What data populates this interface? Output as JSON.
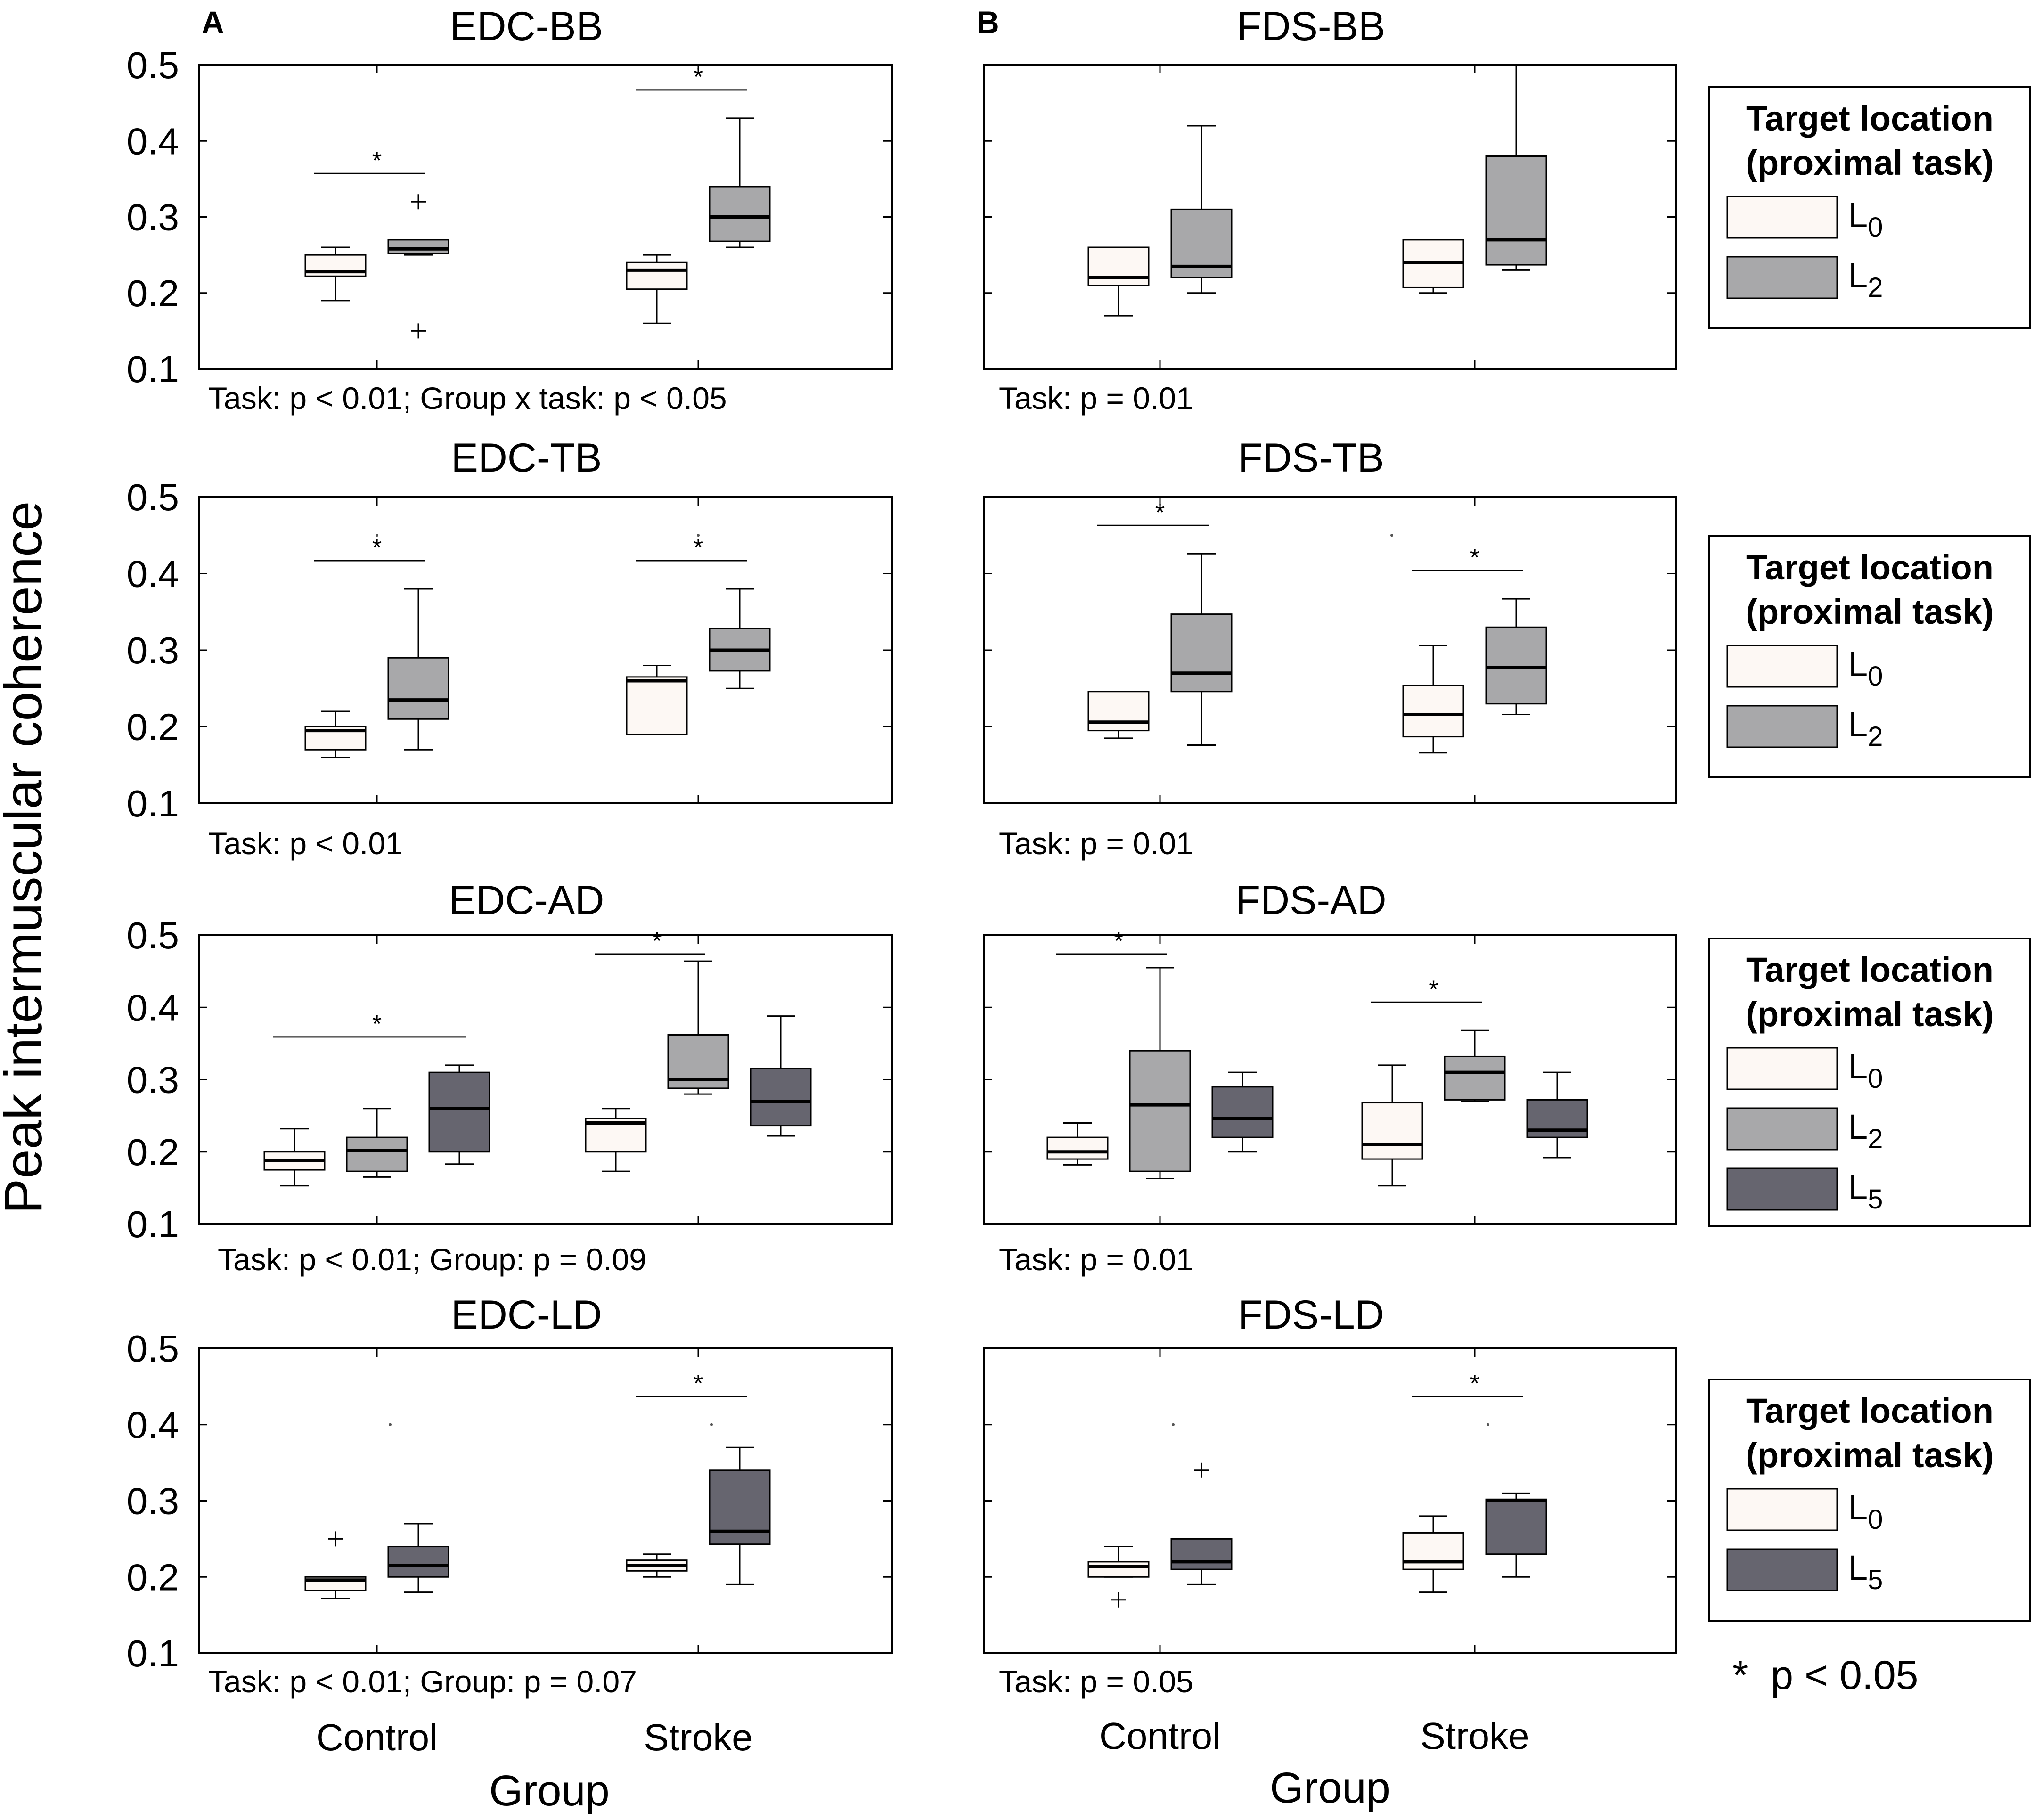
{
  "figure": {
    "y_axis_label": "Peak intermuscular coherence",
    "x_axis_label": "Group",
    "significance_note": "*  p < 0.05",
    "colors": {
      "L0": "#fdf8f4",
      "L2": "#a8a8aa",
      "L5": "#66656f",
      "frame": "#000000"
    }
  },
  "legends": [
    {
      "title_line1": "Target location",
      "title_line2": "(proximal task)",
      "entries": [
        {
          "level": "L0",
          "sub": "0"
        },
        {
          "level": "L2",
          "sub": "2"
        }
      ]
    },
    {
      "title_line1": "Target location",
      "title_line2": "(proximal task)",
      "entries": [
        {
          "level": "L0",
          "sub": "0"
        },
        {
          "level": "L2",
          "sub": "2"
        }
      ]
    },
    {
      "title_line1": "Target location",
      "title_line2": "(proximal task)",
      "entries": [
        {
          "level": "L0",
          "sub": "0"
        },
        {
          "level": "L2",
          "sub": "2"
        },
        {
          "level": "L5",
          "sub": "5"
        }
      ]
    },
    {
      "title_line1": "Target location",
      "title_line2": "(proximal task)",
      "entries": [
        {
          "level": "L0",
          "sub": "0"
        },
        {
          "level": "L5",
          "sub": "5"
        }
      ]
    }
  ],
  "chart_data": [
    {
      "type": "box",
      "panel": "A",
      "title": "EDC-BB",
      "stats": "Task: p < 0.01; Group x task: p < 0.05",
      "ylabel": "Peak intermuscular coherence",
      "xlabel": "Group",
      "ylim": [
        0.1,
        0.5
      ],
      "yticks": [
        "0.1",
        "0.2",
        "0.3",
        "0.4",
        "0.5"
      ],
      "categories": [
        "Control",
        "Stroke"
      ],
      "series": [
        {
          "name": "L0",
          "group": "Control",
          "whisker_low": 0.19,
          "q1": 0.222,
          "median": 0.228,
          "q3": 0.25,
          "whisker_high": 0.26,
          "outliers": []
        },
        {
          "name": "L2",
          "group": "Control",
          "whisker_low": 0.25,
          "q1": 0.252,
          "median": 0.258,
          "q3": 0.27,
          "whisker_high": 0.27,
          "outliers": [
            0.32,
            0.15
          ]
        },
        {
          "name": "L0",
          "group": "Stroke",
          "whisker_low": 0.16,
          "q1": 0.205,
          "median": 0.23,
          "q3": 0.24,
          "whisker_high": 0.25,
          "outliers": []
        },
        {
          "name": "L2",
          "group": "Stroke",
          "whisker_low": 0.26,
          "q1": 0.268,
          "median": 0.3,
          "q3": 0.34,
          "whisker_high": 0.43,
          "outliers": []
        }
      ],
      "significance": [
        {
          "from": "Control L0",
          "to": "Control L2",
          "label": "*"
        },
        {
          "from": "Stroke L0",
          "to": "Stroke L2",
          "label": "*"
        }
      ]
    },
    {
      "type": "box",
      "panel": "B",
      "title": "FDS-BB",
      "stats": "Task: p = 0.01",
      "ylabel": "Peak intermuscular coherence",
      "xlabel": "Group",
      "ylim": [
        0.1,
        0.5
      ],
      "yticks": [
        "0.1",
        "0.2",
        "0.3",
        "0.4",
        "0.5"
      ],
      "categories": [
        "Control",
        "Stroke"
      ],
      "series": [
        {
          "name": "L0",
          "group": "Control",
          "whisker_low": 0.17,
          "q1": 0.21,
          "median": 0.22,
          "q3": 0.26,
          "whisker_high": 0.26,
          "outliers": []
        },
        {
          "name": "L2",
          "group": "Control",
          "whisker_low": 0.2,
          "q1": 0.22,
          "median": 0.235,
          "q3": 0.31,
          "whisker_high": 0.42,
          "outliers": []
        },
        {
          "name": "L0",
          "group": "Stroke",
          "whisker_low": 0.2,
          "q1": 0.207,
          "median": 0.24,
          "q3": 0.27,
          "whisker_high": 0.27,
          "outliers": []
        },
        {
          "name": "L2",
          "group": "Stroke",
          "whisker_low": 0.23,
          "q1": 0.237,
          "median": 0.27,
          "q3": 0.38,
          "whisker_high": 0.5,
          "outliers": []
        }
      ],
      "significance": []
    },
    {
      "type": "box",
      "panel": "",
      "title": "EDC-TB",
      "stats": "Task: p < 0.01",
      "ylabel": "Peak intermuscular coherence",
      "xlabel": "Group",
      "ylim": [
        0.1,
        0.5
      ],
      "yticks": [
        "0.1",
        "0.2",
        "0.3",
        "0.4",
        "0.5"
      ],
      "categories": [
        "Control",
        "Stroke"
      ],
      "series": [
        {
          "name": "L0",
          "group": "Control",
          "whisker_low": 0.16,
          "q1": 0.17,
          "median": 0.195,
          "q3": 0.2,
          "whisker_high": 0.22,
          "outliers": []
        },
        {
          "name": "L2",
          "group": "Control",
          "whisker_low": 0.17,
          "q1": 0.21,
          "median": 0.235,
          "q3": 0.29,
          "whisker_high": 0.38,
          "outliers": [
            0.45
          ]
        },
        {
          "name": "L0",
          "group": "Stroke",
          "whisker_low": 0.19,
          "q1": 0.19,
          "median": 0.26,
          "q3": 0.265,
          "whisker_high": 0.28,
          "outliers": []
        },
        {
          "name": "L2",
          "group": "Stroke",
          "whisker_low": 0.25,
          "q1": 0.273,
          "median": 0.3,
          "q3": 0.328,
          "whisker_high": 0.38,
          "outliers": [
            0.45
          ]
        }
      ],
      "significance": [
        {
          "from": "Control L0",
          "to": "Control L2",
          "label": "*"
        },
        {
          "from": "Stroke L0",
          "to": "Stroke L2",
          "label": "*"
        }
      ]
    },
    {
      "type": "box",
      "panel": "",
      "title": "FDS-TB",
      "stats": "Task: p = 0.01",
      "ylabel": "Peak intermuscular coherence",
      "xlabel": "Group",
      "ylim": [
        0.1,
        0.5
      ],
      "yticks": [
        "0.1",
        "0.2",
        "0.3",
        "0.4",
        "0.5"
      ],
      "categories": [
        "Control",
        "Stroke"
      ],
      "series": [
        {
          "name": "L0",
          "group": "Control",
          "whisker_low": 0.185,
          "q1": 0.195,
          "median": 0.206,
          "q3": 0.246,
          "whisker_high": 0.246,
          "outliers": []
        },
        {
          "name": "L2",
          "group": "Control",
          "whisker_low": 0.176,
          "q1": 0.246,
          "median": 0.27,
          "q3": 0.347,
          "whisker_high": 0.426,
          "outliers": []
        },
        {
          "name": "L0",
          "group": "Stroke",
          "whisker_low": 0.166,
          "q1": 0.187,
          "median": 0.216,
          "q3": 0.254,
          "whisker_high": 0.306,
          "outliers": [
            0.45
          ]
        },
        {
          "name": "L2",
          "group": "Stroke",
          "whisker_low": 0.216,
          "q1": 0.23,
          "median": 0.277,
          "q3": 0.33,
          "whisker_high": 0.367,
          "outliers": []
        }
      ],
      "significance": [
        {
          "from": "Control L0",
          "to": "Control L2",
          "label": "*"
        },
        {
          "from": "Stroke L0",
          "to": "Stroke L2",
          "label": "*"
        }
      ]
    },
    {
      "type": "box",
      "panel": "",
      "title": "EDC-AD",
      "stats": "Task: p < 0.01; Group: p = 0.09",
      "ylabel": "Peak intermuscular coherence",
      "xlabel": "Group",
      "ylim": [
        0.1,
        0.5
      ],
      "yticks": [
        "0.1",
        "0.2",
        "0.3",
        "0.4",
        "0.5"
      ],
      "categories": [
        "Control",
        "Stroke"
      ],
      "series": [
        {
          "name": "L0",
          "group": "Control",
          "whisker_low": 0.153,
          "q1": 0.175,
          "median": 0.188,
          "q3": 0.2,
          "whisker_high": 0.232,
          "outliers": []
        },
        {
          "name": "L2",
          "group": "Control",
          "whisker_low": 0.165,
          "q1": 0.173,
          "median": 0.202,
          "q3": 0.22,
          "whisker_high": 0.26,
          "outliers": []
        },
        {
          "name": "L5",
          "group": "Control",
          "whisker_low": 0.183,
          "q1": 0.2,
          "median": 0.26,
          "q3": 0.31,
          "whisker_high": 0.32,
          "outliers": []
        },
        {
          "name": "L0",
          "group": "Stroke",
          "whisker_low": 0.173,
          "q1": 0.2,
          "median": 0.24,
          "q3": 0.246,
          "whisker_high": 0.26,
          "outliers": []
        },
        {
          "name": "L2",
          "group": "Stroke",
          "whisker_low": 0.28,
          "q1": 0.288,
          "median": 0.3,
          "q3": 0.362,
          "whisker_high": 0.464,
          "outliers": []
        },
        {
          "name": "L5",
          "group": "Stroke",
          "whisker_low": 0.222,
          "q1": 0.236,
          "median": 0.27,
          "q3": 0.315,
          "whisker_high": 0.388,
          "outliers": []
        }
      ],
      "significance": [
        {
          "from": "Control L0",
          "to": "Control L5",
          "label": "*"
        },
        {
          "from": "Stroke L0",
          "to": "Stroke L2",
          "label": "*"
        }
      ]
    },
    {
      "type": "box",
      "panel": "",
      "title": "FDS-AD",
      "stats": "Task: p = 0.01",
      "ylabel": "Peak intermuscular coherence",
      "xlabel": "Group",
      "ylim": [
        0.1,
        0.5
      ],
      "yticks": [
        "0.1",
        "0.2",
        "0.3",
        "0.4",
        "0.5"
      ],
      "categories": [
        "Control",
        "Stroke"
      ],
      "series": [
        {
          "name": "L0",
          "group": "Control",
          "whisker_low": 0.182,
          "q1": 0.19,
          "median": 0.2,
          "q3": 0.22,
          "whisker_high": 0.24,
          "outliers": []
        },
        {
          "name": "L2",
          "group": "Control",
          "whisker_low": 0.163,
          "q1": 0.173,
          "median": 0.265,
          "q3": 0.34,
          "whisker_high": 0.455,
          "outliers": []
        },
        {
          "name": "L5",
          "group": "Control",
          "whisker_low": 0.2,
          "q1": 0.22,
          "median": 0.246,
          "q3": 0.29,
          "whisker_high": 0.31,
          "outliers": []
        },
        {
          "name": "L0",
          "group": "Stroke",
          "whisker_low": 0.153,
          "q1": 0.19,
          "median": 0.21,
          "q3": 0.268,
          "whisker_high": 0.32,
          "outliers": []
        },
        {
          "name": "L2",
          "group": "Stroke",
          "whisker_low": 0.27,
          "q1": 0.272,
          "median": 0.31,
          "q3": 0.332,
          "whisker_high": 0.368,
          "outliers": []
        },
        {
          "name": "L5",
          "group": "Stroke",
          "whisker_low": 0.192,
          "q1": 0.22,
          "median": 0.23,
          "q3": 0.272,
          "whisker_high": 0.31,
          "outliers": []
        }
      ],
      "significance": [
        {
          "from": "Control L0",
          "to": "Control L2",
          "label": "*"
        },
        {
          "from": "Stroke L0",
          "to": "Stroke L2",
          "label": "*"
        }
      ]
    },
    {
      "type": "box",
      "panel": "",
      "title": "EDC-LD",
      "stats": "Task: p < 0.01; Group: p = 0.07",
      "ylabel": "Peak intermuscular coherence",
      "xlabel": "Group",
      "ylim": [
        0.1,
        0.5
      ],
      "yticks": [
        "0.1",
        "0.2",
        "0.3",
        "0.4",
        "0.5"
      ],
      "categories": [
        "Control",
        "Stroke"
      ],
      "series": [
        {
          "name": "L0",
          "group": "Control",
          "whisker_low": 0.172,
          "q1": 0.182,
          "median": 0.196,
          "q3": 0.2,
          "whisker_high": 0.2,
          "outliers": [
            0.25
          ]
        },
        {
          "name": "L5",
          "group": "Control",
          "whisker_low": 0.18,
          "q1": 0.2,
          "median": 0.215,
          "q3": 0.24,
          "whisker_high": 0.27,
          "outliers": [
            0.4
          ]
        },
        {
          "name": "L0",
          "group": "Stroke",
          "whisker_low": 0.2,
          "q1": 0.208,
          "median": 0.215,
          "q3": 0.222,
          "whisker_high": 0.23,
          "outliers": []
        },
        {
          "name": "L5",
          "group": "Stroke",
          "whisker_low": 0.19,
          "q1": 0.243,
          "median": 0.26,
          "q3": 0.34,
          "whisker_high": 0.37,
          "outliers": [
            0.4
          ]
        }
      ],
      "significance": [
        {
          "from": "Stroke L0",
          "to": "Stroke L5",
          "label": "*"
        }
      ]
    },
    {
      "type": "box",
      "panel": "",
      "title": "FDS-LD",
      "stats": "Task: p = 0.05",
      "ylabel": "Peak intermuscular coherence",
      "xlabel": "Group",
      "ylim": [
        0.1,
        0.5
      ],
      "yticks": [
        "0.1",
        "0.2",
        "0.3",
        "0.4",
        "0.5"
      ],
      "categories": [
        "Control",
        "Stroke"
      ],
      "series": [
        {
          "name": "L0",
          "group": "Control",
          "whisker_low": 0.2,
          "q1": 0.2,
          "median": 0.214,
          "q3": 0.22,
          "whisker_high": 0.24,
          "outliers": [
            0.17
          ]
        },
        {
          "name": "L5",
          "group": "Control",
          "whisker_low": 0.19,
          "q1": 0.21,
          "median": 0.22,
          "q3": 0.25,
          "whisker_high": 0.25,
          "outliers": [
            0.34,
            0.4
          ]
        },
        {
          "name": "L0",
          "group": "Stroke",
          "whisker_low": 0.18,
          "q1": 0.21,
          "median": 0.22,
          "q3": 0.258,
          "whisker_high": 0.28,
          "outliers": []
        },
        {
          "name": "L5",
          "group": "Stroke",
          "whisker_low": 0.2,
          "q1": 0.23,
          "median": 0.3,
          "q3": 0.302,
          "whisker_high": 0.31,
          "outliers": [
            0.4
          ]
        }
      ],
      "significance": [
        {
          "from": "Stroke L0",
          "to": "Stroke L5",
          "label": "*"
        }
      ]
    }
  ]
}
